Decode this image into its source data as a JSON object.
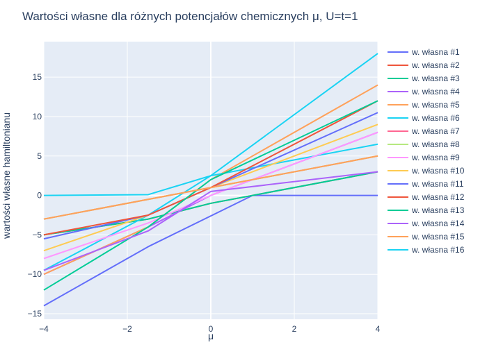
{
  "chart_data": {
    "type": "line",
    "title": "Wartości własne dla różnych potencjałów chemicznych μ, U=t=1",
    "xlabel": "μ",
    "ylabel": "wartości własne hamiltonianu",
    "xlim": [
      -4,
      4
    ],
    "ylim": [
      -15.7,
      19.5
    ],
    "x_ticks": [
      -4,
      -2,
      0,
      2,
      4
    ],
    "y_ticks": [
      -15,
      -10,
      -5,
      0,
      5,
      10,
      15
    ],
    "x_tick_labels": [
      "−4",
      "−2",
      "0",
      "2",
      "4"
    ],
    "y_tick_labels": [
      "−15",
      "−10",
      "−5",
      "0",
      "5",
      "10",
      "15"
    ],
    "legend_position": "right",
    "plot_bg": "#e5ecf6",
    "grid": true,
    "series": [
      {
        "name": "w. własna #1",
        "color": "#636efa",
        "x": [
          -4,
          -1.5,
          1,
          4
        ],
        "y": [
          -14,
          -6.5,
          0,
          0
        ]
      },
      {
        "name": "w. własna #2",
        "color": "#ef553b",
        "x": [
          -4,
          -1.5,
          0,
          4
        ],
        "y": [
          -5,
          -3,
          -1,
          3
        ]
      },
      {
        "name": "w. własna #3",
        "color": "#00cc96",
        "x": [
          -4,
          -1.5,
          0,
          4
        ],
        "y": [
          -5,
          -3,
          -1,
          3
        ]
      },
      {
        "name": "w. własna #4",
        "color": "#ab63fa",
        "x": [
          -4,
          -1.5,
          0,
          4
        ],
        "y": [
          -10,
          -4,
          0,
          8
        ]
      },
      {
        "name": "w. własna #5",
        "color": "#ffa15a",
        "x": [
          -4,
          -1.5,
          0,
          4
        ],
        "y": [
          -10,
          -4,
          2,
          14
        ]
      },
      {
        "name": "w. własna #6",
        "color": "#19d3f3",
        "x": [
          -4,
          -1.5,
          0,
          4
        ],
        "y": [
          -9.5,
          -2.5,
          2.5,
          6.5
        ]
      },
      {
        "name": "w. własna #7",
        "color": "#ff6692",
        "x": [
          -4,
          -1.5,
          0,
          4
        ],
        "y": [
          -3,
          -0.5,
          1,
          5
        ]
      },
      {
        "name": "w. własna #8",
        "color": "#b6e880",
        "x": [
          -4,
          -1.5,
          0,
          4
        ],
        "y": [
          -3,
          -0.5,
          1,
          5
        ]
      },
      {
        "name": "w. własna #9",
        "color": "#ff97ff",
        "x": [
          -4,
          -1.5,
          0,
          4
        ],
        "y": [
          -8,
          -3.5,
          0,
          8
        ]
      },
      {
        "name": "w. własna #10",
        "color": "#fecb52",
        "x": [
          -4,
          -1.5,
          0,
          4
        ],
        "y": [
          -7,
          -2.5,
          1,
          9
        ]
      },
      {
        "name": "w. własna #11",
        "color": "#636efa",
        "x": [
          -4,
          -1.5,
          0,
          4
        ],
        "y": [
          -5.5,
          -2.5,
          1,
          10.5
        ]
      },
      {
        "name": "w. własna #12",
        "color": "#ef553b",
        "x": [
          -4,
          -1.5,
          0,
          4
        ],
        "y": [
          -5,
          -2.5,
          1,
          12
        ]
      },
      {
        "name": "w. własna #13",
        "color": "#00cc96",
        "x": [
          -4,
          -1.5,
          0,
          4
        ],
        "y": [
          -12,
          -4,
          2,
          12
        ]
      },
      {
        "name": "w. własna #14",
        "color": "#ab63fa",
        "x": [
          -4,
          -1.5,
          0,
          4
        ],
        "y": [
          -9.5,
          -4.5,
          0.5,
          3
        ]
      },
      {
        "name": "w. własna #15",
        "color": "#ffa15a",
        "x": [
          -4,
          -1.5,
          0,
          4
        ],
        "y": [
          -3,
          -0.5,
          1,
          5
        ]
      },
      {
        "name": "w. własna #16",
        "color": "#19d3f3",
        "x": [
          -4,
          -1.5,
          0,
          4
        ],
        "y": [
          0,
          0.1,
          2.5,
          18
        ]
      }
    ]
  }
}
